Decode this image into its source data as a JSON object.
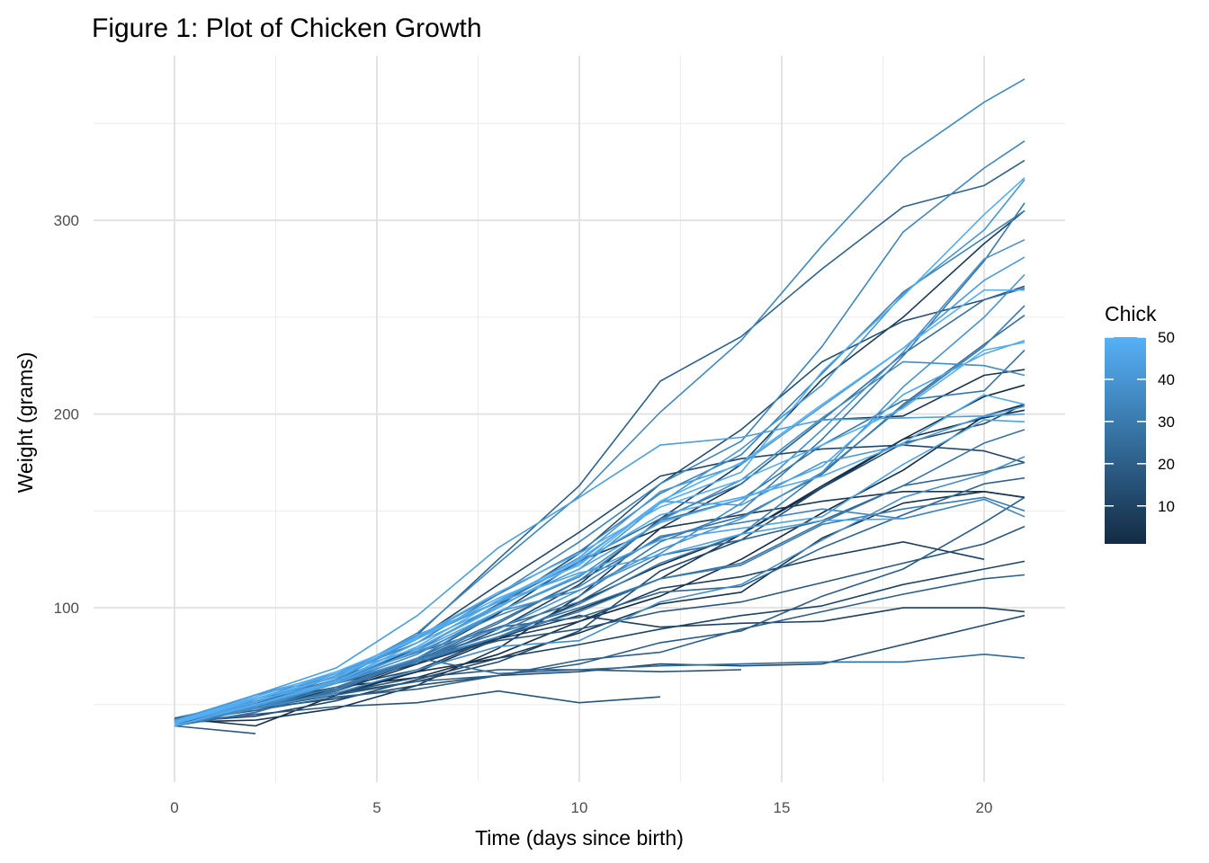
{
  "chart_data": {
    "type": "line",
    "title": "Figure 1: Plot of Chicken Growth",
    "xlabel": "Time (days since birth)",
    "ylabel": "Weight (grams)",
    "xlim": [
      -2,
      22
    ],
    "ylim": [
      10,
      385
    ],
    "x_ticks": [
      0,
      5,
      10,
      15,
      20
    ],
    "x_tick_labels": [
      "0",
      "5",
      "10",
      "15",
      "20"
    ],
    "y_ticks": [
      100,
      200,
      300
    ],
    "y_tick_labels": [
      "100",
      "200",
      "300"
    ],
    "x_minor_ticks": [
      2.5,
      7.5,
      12.5,
      17.5
    ],
    "y_minor_ticks": [
      50,
      150,
      250,
      350
    ],
    "grid": true,
    "legend": {
      "title": "Chick",
      "position": "right",
      "range": [
        1,
        50
      ],
      "breaks": [
        10,
        20,
        30,
        40,
        50
      ],
      "labels": [
        "10",
        "20",
        "30",
        "40",
        "50"
      ],
      "color_low": "#132B43",
      "color_high": "#56B1F7"
    },
    "x": [
      0,
      2,
      4,
      6,
      8,
      10,
      12,
      14,
      16,
      18,
      20,
      21
    ],
    "series": [
      {
        "chick": 1,
        "values": [
          42,
          51,
          59,
          64,
          76,
          93,
          106,
          125,
          149,
          171,
          199,
          205
        ]
      },
      {
        "chick": 2,
        "values": [
          40,
          49,
          58,
          72,
          84,
          103,
          122,
          138,
          162,
          187,
          209,
          215
        ]
      },
      {
        "chick": 3,
        "values": [
          43,
          39,
          55,
          67,
          84,
          99,
          115,
          138,
          163,
          187,
          198,
          202
        ]
      },
      {
        "chick": 4,
        "values": [
          42,
          49,
          56,
          67,
          74,
          87,
          102,
          108,
          136,
          154,
          160,
          157
        ]
      },
      {
        "chick": 5,
        "values": [
          41,
          42,
          48,
          60,
          79,
          106,
          141,
          164,
          197,
          199,
          220,
          223
        ]
      },
      {
        "chick": 6,
        "values": [
          41,
          49,
          59,
          74,
          97,
          124,
          141,
          148,
          155,
          160,
          160,
          157
        ]
      },
      {
        "chick": 7,
        "values": [
          41,
          49,
          57,
          71,
          89,
          112,
          146,
          174,
          218,
          250,
          288,
          305
        ]
      },
      {
        "chick": 8,
        "values": [
          42,
          50,
          61,
          71,
          84,
          93,
          110,
          116,
          126,
          134,
          125,
          null
        ]
      },
      {
        "chick": 9,
        "values": [
          42,
          51,
          59,
          68,
          85,
          96,
          90,
          92,
          93,
          100,
          100,
          98
        ]
      },
      {
        "chick": 10,
        "values": [
          41,
          44,
          52,
          63,
          74,
          81,
          89,
          96,
          101,
          112,
          120,
          124
        ]
      },
      {
        "chick": 11,
        "values": [
          43,
          51,
          63,
          84,
          112,
          139,
          168,
          177,
          182,
          184,
          181,
          175
        ]
      },
      {
        "chick": 12,
        "values": [
          41,
          49,
          56,
          62,
          72,
          88,
          119,
          135,
          162,
          185,
          195,
          205
        ]
      },
      {
        "chick": 13,
        "values": [
          41,
          48,
          53,
          60,
          65,
          67,
          71,
          70,
          71,
          81,
          91,
          96
        ]
      },
      {
        "chick": 14,
        "values": [
          41,
          49,
          62,
          79,
          101,
          128,
          164,
          192,
          227,
          248,
          259,
          266
        ]
      },
      {
        "chick": 15,
        "values": [
          41,
          49,
          56,
          64,
          68,
          68,
          67,
          68,
          null,
          null,
          null,
          null
        ]
      },
      {
        "chick": 16,
        "values": [
          41,
          45,
          49,
          51,
          57,
          51,
          54,
          null,
          null,
          null,
          null,
          null
        ]
      },
      {
        "chick": 17,
        "values": [
          42,
          51,
          61,
          72,
          83,
          89,
          98,
          103,
          113,
          123,
          133,
          142
        ]
      },
      {
        "chick": 18,
        "values": [
          39,
          35,
          null,
          null,
          null,
          null,
          null,
          null,
          null,
          null,
          null,
          null
        ]
      },
      {
        "chick": 19,
        "values": [
          43,
          48,
          55,
          62,
          65,
          71,
          82,
          88,
          106,
          120,
          144,
          157
        ]
      },
      {
        "chick": 20,
        "values": [
          41,
          47,
          54,
          58,
          65,
          73,
          77,
          89,
          98,
          107,
          115,
          117
        ]
      },
      {
        "chick": 21,
        "values": [
          40,
          50,
          62,
          86,
          125,
          163,
          217,
          240,
          275,
          307,
          318,
          331
        ]
      },
      {
        "chick": 22,
        "values": [
          41,
          55,
          64,
          77,
          90,
          95,
          108,
          111,
          131,
          148,
          164,
          167
        ]
      },
      {
        "chick": 23,
        "values": [
          43,
          52,
          61,
          73,
          90,
          103,
          127,
          135,
          145,
          163,
          170,
          175
        ]
      },
      {
        "chick": 24,
        "values": [
          42,
          52,
          58,
          74,
          66,
          68,
          70,
          71,
          72,
          72,
          76,
          74
        ]
      },
      {
        "chick": 25,
        "values": [
          40,
          49,
          62,
          78,
          102,
          124,
          146,
          164,
          197,
          231,
          259,
          265
        ]
      },
      {
        "chick": 26,
        "values": [
          42,
          48,
          57,
          74,
          93,
          114,
          136,
          147,
          169,
          205,
          236,
          251
        ]
      },
      {
        "chick": 27,
        "values": [
          39,
          46,
          58,
          73,
          87,
          100,
          115,
          123,
          144,
          163,
          185,
          192
        ]
      },
      {
        "chick": 28,
        "values": [
          39,
          46,
          58,
          73,
          92,
          114,
          145,
          156,
          184,
          207,
          212,
          233
        ]
      },
      {
        "chick": 29,
        "values": [
          39,
          48,
          59,
          74,
          87,
          106,
          134,
          150,
          187,
          230,
          279,
          309
        ]
      },
      {
        "chick": 30,
        "values": [
          42,
          48,
          59,
          72,
          85,
          98,
          115,
          122,
          143,
          151,
          157,
          150
        ]
      },
      {
        "chick": 31,
        "values": [
          42,
          53,
          62,
          73,
          85,
          102,
          123,
          138,
          170,
          204,
          235,
          256
        ]
      },
      {
        "chick": 32,
        "values": [
          41,
          49,
          65,
          82,
          107,
          129,
          159,
          179,
          221,
          263,
          291,
          305
        ]
      },
      {
        "chick": 33,
        "values": [
          39,
          50,
          63,
          77,
          96,
          111,
          137,
          144,
          151,
          146,
          156,
          147
        ]
      },
      {
        "chick": 34,
        "values": [
          41,
          49,
          63,
          85,
          107,
          134,
          164,
          186,
          235,
          294,
          327,
          341
        ]
      },
      {
        "chick": 35,
        "values": [
          41,
          53,
          64,
          87,
          123,
          158,
          201,
          238,
          287,
          332,
          361,
          373
        ]
      },
      {
        "chick": 36,
        "values": [
          39,
          48,
          61,
          76,
          98,
          116,
          145,
          166,
          198,
          227,
          225,
          220
        ]
      },
      {
        "chick": 37,
        "values": [
          41,
          48,
          56,
          68,
          80,
          83,
          103,
          112,
          135,
          157,
          169,
          178
        ]
      },
      {
        "chick": 38,
        "values": [
          41,
          49,
          61,
          74,
          98,
          109,
          128,
          154,
          192,
          232,
          280,
          290
        ]
      },
      {
        "chick": 39,
        "values": [
          42,
          50,
          61,
          78,
          89,
          109,
          130,
          146,
          170,
          214,
          250,
          272
        ]
      },
      {
        "chick": 40,
        "values": [
          41,
          55,
          66,
          79,
          101,
          120,
          154,
          182,
          215,
          262,
          295,
          321
        ]
      },
      {
        "chick": 41,
        "values": [
          42,
          51,
          66,
          85,
          103,
          124,
          155,
          153,
          175,
          184,
          199,
          204
        ]
      },
      {
        "chick": 42,
        "values": [
          42,
          49,
          63,
          84,
          103,
          126,
          160,
          174,
          204,
          234,
          269,
          281
        ]
      },
      {
        "chick": 43,
        "values": [
          42,
          55,
          69,
          96,
          131,
          157,
          184,
          188,
          197,
          198,
          199,
          200
        ]
      },
      {
        "chick": 44,
        "values": [
          42,
          51,
          65,
          86,
          103,
          118,
          127,
          138,
          145,
          146,
          null,
          null
        ]
      },
      {
        "chick": 45,
        "values": [
          41,
          50,
          61,
          78,
          98,
          117,
          135,
          141,
          147,
          174,
          197,
          196
        ]
      },
      {
        "chick": 46,
        "values": [
          40,
          52,
          62,
          82,
          101,
          120,
          144,
          156,
          173,
          210,
          231,
          238
        ]
      },
      {
        "chick": 47,
        "values": [
          41,
          53,
          66,
          79,
          100,
          123,
          148,
          157,
          168,
          185,
          210,
          205
        ]
      },
      {
        "chick": 48,
        "values": [
          39,
          50,
          62,
          80,
          104,
          125,
          154,
          170,
          222,
          261,
          303,
          322
        ]
      },
      {
        "chick": 49,
        "values": [
          40,
          53,
          64,
          85,
          108,
          128,
          152,
          166,
          184,
          203,
          233,
          237
        ]
      },
      {
        "chick": 50,
        "values": [
          41,
          54,
          67,
          84,
          105,
          122,
          155,
          175,
          205,
          234,
          264,
          264
        ]
      }
    ]
  }
}
